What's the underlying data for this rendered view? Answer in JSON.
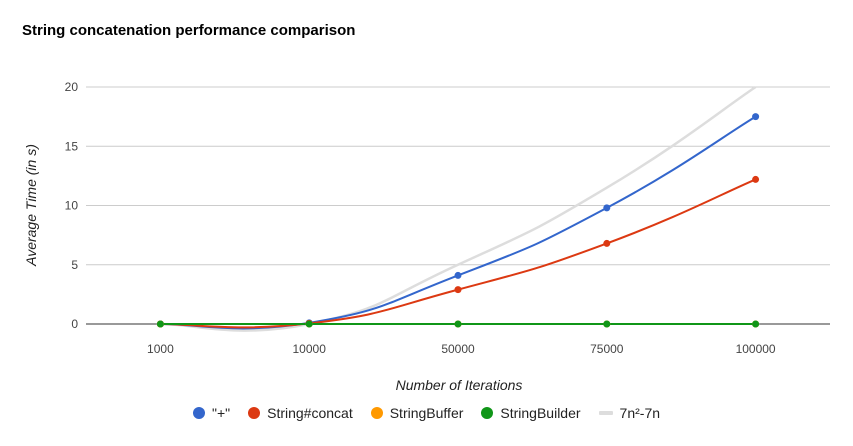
{
  "chart_data": {
    "type": "line",
    "title": "String concatenation performance comparison",
    "xlabel": "Number of Iterations",
    "ylabel": "Average Time (in s)",
    "categories": [
      "1000",
      "10000",
      "50000",
      "75000",
      "100000"
    ],
    "y_ticks": [
      "0",
      "5",
      "10",
      "15",
      "20"
    ],
    "ylim": [
      0,
      20
    ],
    "series": [
      {
        "name": "\"+\"",
        "values": [
          0,
          0.1,
          4.1,
          9.8,
          17.5
        ],
        "color": "#3366cc",
        "markers": true
      },
      {
        "name": "String#concat",
        "values": [
          0,
          0.05,
          2.9,
          6.8,
          12.2
        ],
        "color": "#dc3912",
        "markers": true
      },
      {
        "name": "StringBuffer",
        "values": [
          0,
          0,
          0,
          0,
          0
        ],
        "color": "#ff9900",
        "markers": true
      },
      {
        "name": "StringBuilder",
        "values": [
          0,
          0,
          0,
          0,
          0
        ],
        "color": "#109618",
        "markers": true
      },
      {
        "name": "7n²-7n",
        "values": [
          0,
          0,
          5,
          11.5,
          20
        ],
        "color": "#dddddd",
        "markers": false
      }
    ],
    "legend_position": "bottom"
  }
}
